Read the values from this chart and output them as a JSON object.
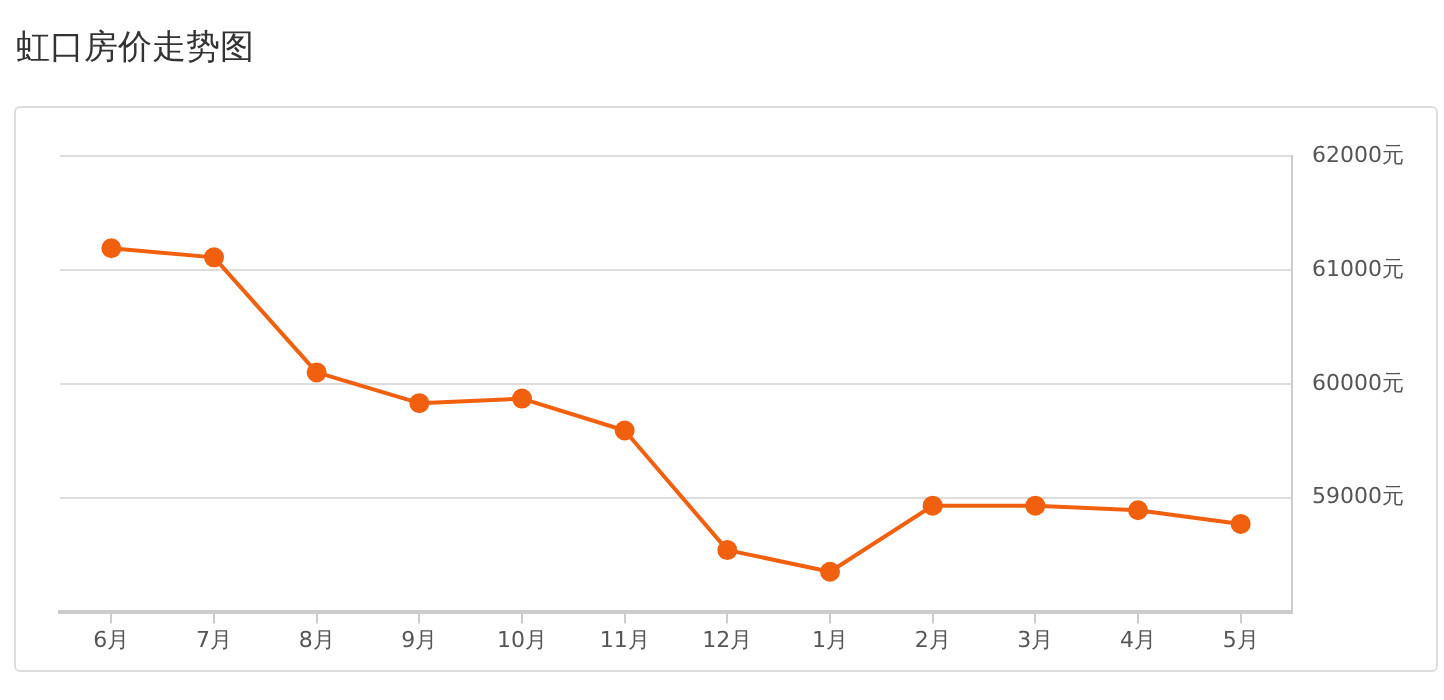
{
  "chart_data": {
    "type": "line",
    "title": "虹口房价走势图",
    "categories": [
      "6月",
      "7月",
      "8月",
      "9月",
      "10月",
      "11月",
      "12月",
      "1月",
      "2月",
      "3月",
      "4月",
      "5月"
    ],
    "series": [
      {
        "color": "#f0600f",
        "values": [
          61190,
          61110,
          60100,
          59830,
          59870,
          59590,
          58540,
          58350,
          58930,
          58930,
          58890,
          58770
        ]
      }
    ],
    "ylim": [
      58000,
      62000
    ],
    "yticks": [
      {
        "value": 58000,
        "label": null
      },
      {
        "value": 59000,
        "label": "59000元"
      },
      {
        "value": 60000,
        "label": "60000元"
      },
      {
        "value": 61000,
        "label": "61000元"
      },
      {
        "value": 62000,
        "label": "62000元"
      }
    ],
    "grid": "y",
    "legend": false,
    "marker": "circle",
    "line_style": "solid"
  }
}
